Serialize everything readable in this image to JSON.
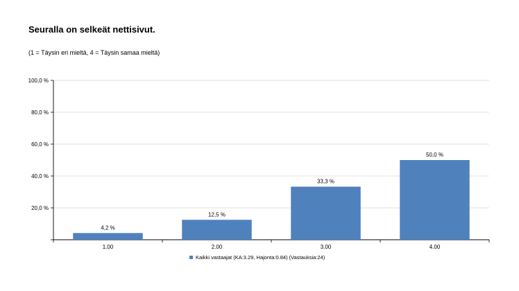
{
  "title": "Seuralla on selkeät nettisivut.",
  "subtitle": "(1 = Täysin eri mieltä, 4 = Täysin samaa mieltä)",
  "colors": {
    "bar": "#4f81bd",
    "grid": "#d9d9d9",
    "axis": "#000000"
  },
  "chart_data": {
    "type": "bar",
    "categories": [
      "1.00",
      "2.00",
      "3.00",
      "4.00"
    ],
    "series": [
      {
        "name": "Kaikki vastaajat (KA:3.29, Hajonta:0.84) (Vastauksia:24)",
        "values": [
          4.2,
          12.5,
          33.3,
          50.0
        ]
      }
    ],
    "data_labels": [
      "4,2 %",
      "12,5 %",
      "33,3 %",
      "50,0 %"
    ],
    "y_ticks": [
      20,
      40,
      60,
      80,
      100
    ],
    "y_tick_labels": [
      "20,0 %",
      "40,0 %",
      "60,0 %",
      "80,0 %",
      "100,0 %"
    ],
    "ylim": [
      0,
      100
    ],
    "grid": true,
    "legend_position": "bottom"
  }
}
